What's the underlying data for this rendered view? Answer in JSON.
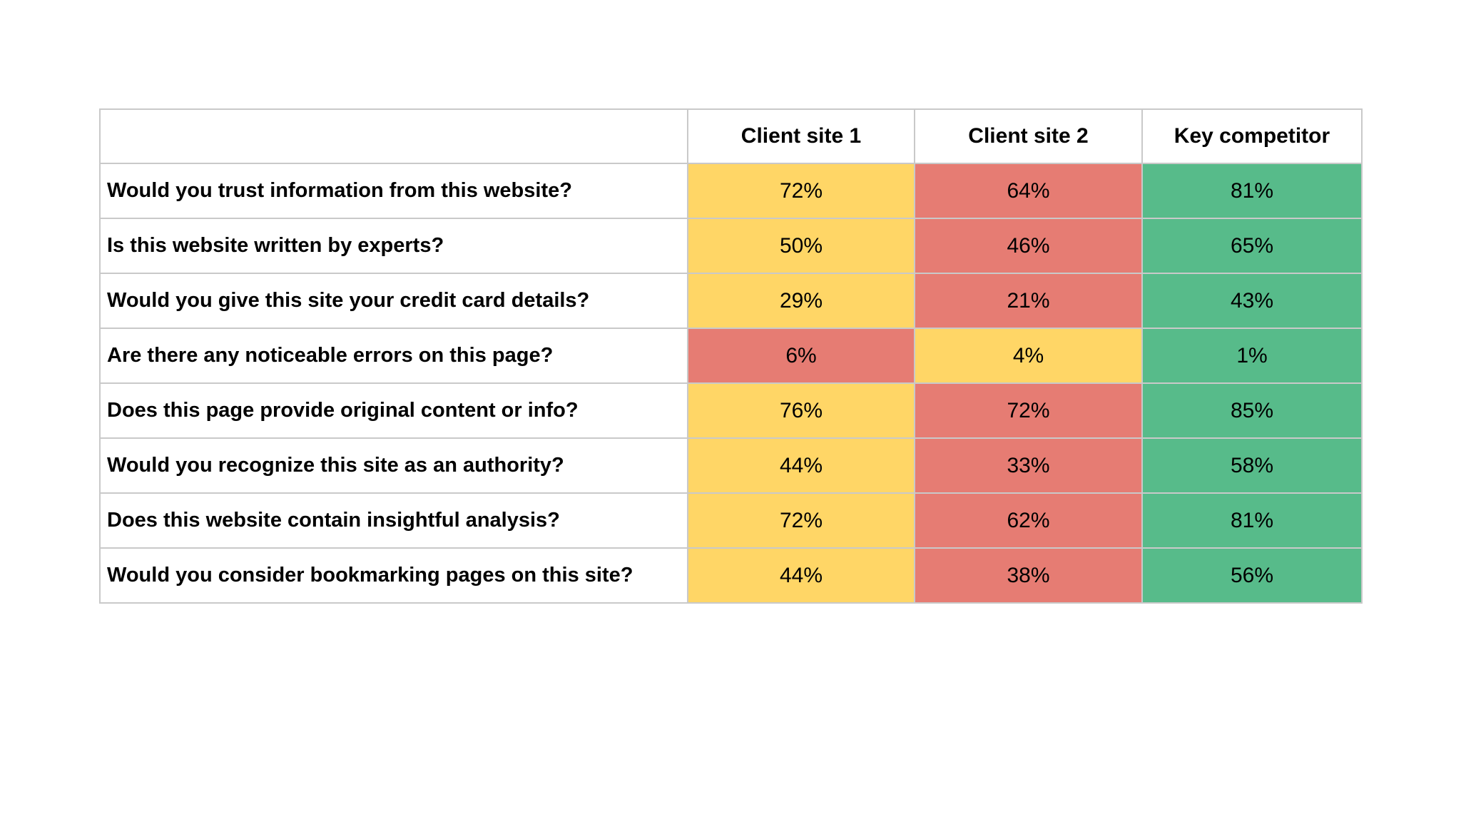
{
  "palette": {
    "yellow": "#FFD666",
    "red": "#E67C73",
    "green": "#57BB8A",
    "border": "#C9C9C9",
    "text": "#000000",
    "background": "#FFFFFF"
  },
  "table": {
    "header": [
      "",
      "Client site 1",
      "Client site 2",
      "Key competitor"
    ],
    "rows": [
      {
        "question": "Would you trust information from this website?",
        "cells": [
          {
            "text": "72%",
            "color": "yellow"
          },
          {
            "text": "64%",
            "color": "red"
          },
          {
            "text": "81%",
            "color": "green"
          }
        ]
      },
      {
        "question": "Is this website written by experts?",
        "cells": [
          {
            "text": "50%",
            "color": "yellow"
          },
          {
            "text": "46%",
            "color": "red"
          },
          {
            "text": "65%",
            "color": "green"
          }
        ]
      },
      {
        "question": "Would you give this site your credit card details?",
        "cells": [
          {
            "text": "29%",
            "color": "yellow"
          },
          {
            "text": "21%",
            "color": "red"
          },
          {
            "text": "43%",
            "color": "green"
          }
        ]
      },
      {
        "question": "Are there any noticeable errors on this page?",
        "cells": [
          {
            "text": "6%",
            "color": "red"
          },
          {
            "text": "4%",
            "color": "yellow"
          },
          {
            "text": "1%",
            "color": "green"
          }
        ]
      },
      {
        "question": "Does this page provide original content or info?",
        "cells": [
          {
            "text": "76%",
            "color": "yellow"
          },
          {
            "text": "72%",
            "color": "red"
          },
          {
            "text": "85%",
            "color": "green"
          }
        ]
      },
      {
        "question": "Would you recognize this site as an authority?",
        "cells": [
          {
            "text": "44%",
            "color": "yellow"
          },
          {
            "text": "33%",
            "color": "red"
          },
          {
            "text": "58%",
            "color": "green"
          }
        ]
      },
      {
        "question": "Does this website contain insightful analysis?",
        "cells": [
          {
            "text": "72%",
            "color": "yellow"
          },
          {
            "text": "62%",
            "color": "red"
          },
          {
            "text": "81%",
            "color": "green"
          }
        ]
      },
      {
        "question": "Would you consider bookmarking pages on this site?",
        "cells": [
          {
            "text": "44%",
            "color": "yellow"
          },
          {
            "text": "38%",
            "color": "red"
          },
          {
            "text": "56%",
            "color": "green"
          }
        ]
      }
    ]
  },
  "chart_data": {
    "type": "table",
    "title": "",
    "categories": [
      "Would you trust information from this website?",
      "Is this website written by experts?",
      "Would you give this site your credit card details?",
      "Are there any noticeable errors on this page?",
      "Does this page provide original content or info?",
      "Would you recognize this site as an authority?",
      "Does this website contain insightful analysis?",
      "Would you consider bookmarking pages on this site?"
    ],
    "series": [
      {
        "name": "Client site 1",
        "values": [
          72,
          50,
          29,
          6,
          76,
          44,
          72,
          44
        ]
      },
      {
        "name": "Client site 2",
        "values": [
          64,
          46,
          21,
          4,
          72,
          33,
          62,
          38
        ]
      },
      {
        "name": "Key competitor",
        "values": [
          81,
          65,
          43,
          1,
          85,
          58,
          81,
          56
        ]
      }
    ],
    "units": "%",
    "cell_colors": {
      "Client site 1": [
        "yellow",
        "yellow",
        "yellow",
        "red",
        "yellow",
        "yellow",
        "yellow",
        "yellow"
      ],
      "Client site 2": [
        "red",
        "red",
        "red",
        "yellow",
        "red",
        "red",
        "red",
        "red"
      ],
      "Key competitor": [
        "green",
        "green",
        "green",
        "green",
        "green",
        "green",
        "green",
        "green"
      ]
    },
    "legend_position": "none",
    "notes": "Traffic-light heat table: green = best score per row, red = worst, yellow = middle; row 4 is a negative question so low values are green."
  }
}
